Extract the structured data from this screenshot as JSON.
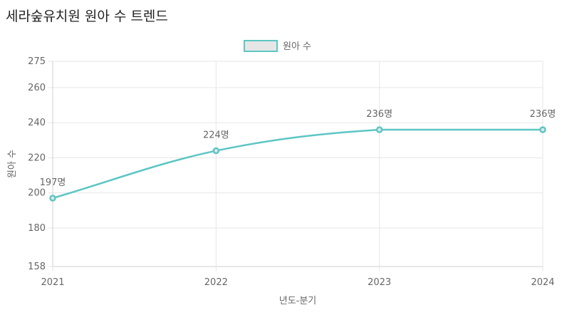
{
  "page": {
    "title": "세라숲유치원 원아 수 트렌드"
  },
  "chart_data": {
    "type": "line",
    "title": "",
    "xlabel": "년도-분기",
    "ylabel": "원아 수",
    "categories": [
      "2021",
      "2022",
      "2023",
      "2024"
    ],
    "series": [
      {
        "name": "원아 수",
        "values": [
          197,
          224,
          236,
          236
        ],
        "data_labels": [
          "197명",
          "224명",
          "236명",
          "236명"
        ],
        "color": "#5cc6c4",
        "fill_color": "#e6e6e6"
      }
    ],
    "yticks": [
      158,
      180,
      200,
      220,
      240,
      260,
      275
    ],
    "ylim": [
      158,
      275
    ],
    "grid": true,
    "legend_position": "top-center"
  }
}
